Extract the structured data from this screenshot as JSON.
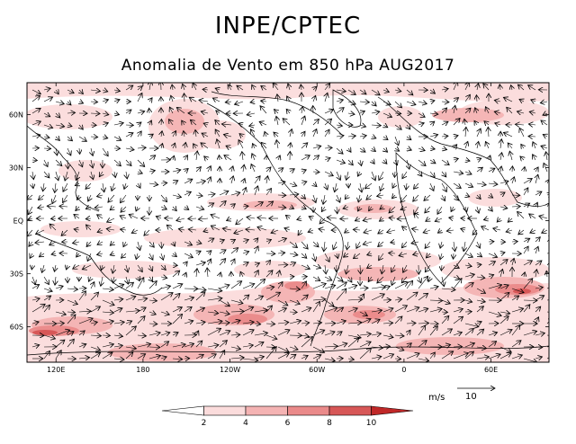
{
  "header": {
    "title": "INPE/CPTEC",
    "subtitle": "Anomalia de Vento em 850 hPa AUG2017"
  },
  "map": {
    "lat_labels": [
      "60N",
      "30N",
      "EQ",
      "30S",
      "60S"
    ],
    "lat_values": [
      60,
      30,
      0,
      -30,
      -60
    ],
    "lon_labels": [
      "120E",
      "180",
      "120W",
      "60W",
      "0",
      "60E"
    ],
    "lon_values": [
      120,
      180,
      240,
      300,
      360,
      420
    ],
    "lon_range": [
      100,
      460
    ],
    "lat_range": [
      -80,
      78
    ]
  },
  "shading_colors": [
    "#ffffff",
    "#fbdcdc",
    "#f4b3b3",
    "#ea8a8a",
    "#d75757",
    "#c02828"
  ],
  "colorbar": {
    "ticks": [
      "2",
      "4",
      "6",
      "8",
      "10"
    ]
  },
  "vector_key": {
    "unit": "m/s",
    "value": "10"
  }
}
